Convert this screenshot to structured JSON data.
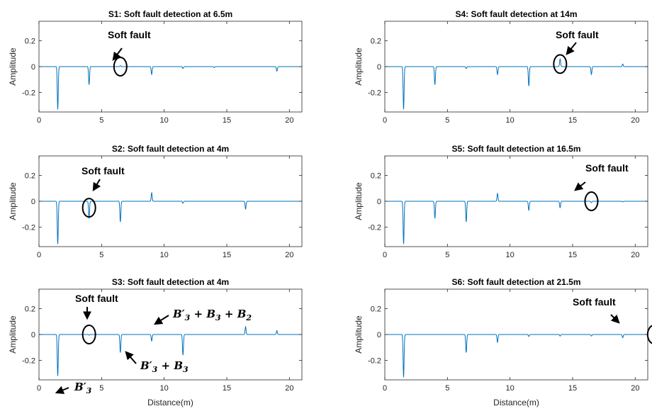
{
  "colors": {
    "line": "#0072BD",
    "axis": "#262626",
    "annotation": "#000000"
  },
  "chart_data": [
    {
      "type": "line",
      "title": "S1: Soft fault detection at 6.5m",
      "ylabel": "Amplitude",
      "xlabel": "",
      "xlim": [
        0,
        21
      ],
      "ylim": [
        -0.35,
        0.35
      ],
      "xticks": [
        "0",
        "5",
        "10",
        "15",
        "20"
      ],
      "yticks": [
        "0.2",
        "0",
        "-0.2"
      ],
      "series": [
        {
          "dips": [
            [
              1.5,
              -0.33
            ],
            [
              4.0,
              -0.14
            ],
            [
              6.5,
              0.008
            ],
            [
              9.0,
              -0.06
            ],
            [
              11.5,
              -0.015
            ],
            [
              14.0,
              -0.008
            ],
            [
              19.0,
              -0.035
            ]
          ]
        }
      ],
      "annotations": [
        {
          "text": "Soft fault",
          "circle_at": [
            6.5,
            0.0
          ]
        }
      ]
    },
    {
      "type": "line",
      "title": "S2: Soft fault detection at 4m",
      "ylabel": "Amplitude",
      "xlabel": "",
      "xlim": [
        0,
        21
      ],
      "ylim": [
        -0.35,
        0.35
      ],
      "xticks": [
        "0",
        "5",
        "10",
        "15",
        "20"
      ],
      "yticks": [
        "0.2",
        "0",
        "-0.2"
      ],
      "series": [
        {
          "dips": [
            [
              1.5,
              -0.33
            ],
            [
              4.0,
              -0.13
            ],
            [
              6.5,
              -0.16
            ],
            [
              9.0,
              0.065
            ],
            [
              11.5,
              -0.015
            ],
            [
              16.5,
              -0.06
            ]
          ]
        }
      ],
      "annotations": [
        {
          "text": "Soft fault",
          "circle_at": [
            4.0,
            -0.05
          ]
        }
      ]
    },
    {
      "type": "line",
      "title": "S3: Soft fault detection at 4m",
      "ylabel": "Amplitude",
      "xlabel": "Distance(m)",
      "xlim": [
        0,
        21
      ],
      "ylim": [
        -0.35,
        0.35
      ],
      "xticks": [
        "0",
        "5",
        "10",
        "15",
        "20"
      ],
      "yticks": [
        "0.2",
        "0",
        "-0.2"
      ],
      "series": [
        {
          "dips": [
            [
              1.5,
              -0.32
            ],
            [
              4.0,
              -0.005
            ],
            [
              6.5,
              -0.14
            ],
            [
              9.0,
              -0.05
            ],
            [
              11.5,
              -0.16
            ],
            [
              16.5,
              0.06
            ],
            [
              19.0,
              0.03
            ]
          ]
        }
      ],
      "annotations": [
        {
          "text": "Soft fault",
          "circle_at": [
            4.0,
            0.0
          ]
        },
        {
          "text": "B′3",
          "at": [
            1.5,
            -0.32
          ]
        },
        {
          "text": "B′3+ B3",
          "at": [
            6.5,
            -0.14
          ]
        },
        {
          "text": "B′3+ B3+ B2",
          "at": [
            9.0,
            -0.05
          ]
        }
      ]
    },
    {
      "type": "line",
      "title": "S4: Soft fault detection at 14m",
      "ylabel": "Amplitude",
      "xlabel": "",
      "xlim": [
        0,
        21
      ],
      "ylim": [
        -0.35,
        0.35
      ],
      "xticks": [
        "0",
        "5",
        "10",
        "15",
        "20"
      ],
      "yticks": [
        "0.2",
        "0",
        "-0.2"
      ],
      "series": [
        {
          "dips": [
            [
              1.5,
              -0.33
            ],
            [
              4.0,
              -0.14
            ],
            [
              6.5,
              -0.015
            ],
            [
              9.0,
              -0.06
            ],
            [
              11.5,
              -0.15
            ],
            [
              14.0,
              0.06
            ],
            [
              16.5,
              -0.06
            ],
            [
              19.0,
              0.02
            ]
          ]
        }
      ],
      "annotations": [
        {
          "text": "Soft fault",
          "circle_at": [
            14.0,
            0.02
          ]
        }
      ]
    },
    {
      "type": "line",
      "title": "S5: Soft fault detection at 16.5m",
      "ylabel": "Amplitude",
      "xlabel": "",
      "xlim": [
        0,
        21
      ],
      "ylim": [
        -0.35,
        0.35
      ],
      "xticks": [
        "0",
        "5",
        "10",
        "15",
        "20"
      ],
      "yticks": [
        "0.2",
        "0",
        "-0.2"
      ],
      "series": [
        {
          "dips": [
            [
              1.5,
              -0.33
            ],
            [
              4.0,
              -0.13
            ],
            [
              6.5,
              -0.16
            ],
            [
              9.0,
              0.06
            ],
            [
              11.5,
              -0.07
            ],
            [
              14.0,
              -0.05
            ],
            [
              16.5,
              -0.01
            ],
            [
              19.0,
              -0.005
            ]
          ]
        }
      ],
      "annotations": [
        {
          "text": "Soft fault",
          "circle_at": [
            16.5,
            0.0
          ]
        }
      ]
    },
    {
      "type": "line",
      "title": "S6: Soft fault detection at 21.5m",
      "ylabel": "Amplitude",
      "xlabel": "Distance(m)",
      "xlim": [
        0,
        21
      ],
      "ylim": [
        -0.35,
        0.35
      ],
      "xticks": [
        "0",
        "5",
        "10",
        "15",
        "20"
      ],
      "yticks": [
        "0.2",
        "0",
        "-0.2"
      ],
      "series": [
        {
          "dips": [
            [
              1.5,
              -0.33
            ],
            [
              6.5,
              -0.14
            ],
            [
              9.0,
              -0.06
            ],
            [
              11.5,
              -0.015
            ],
            [
              14.0,
              -0.012
            ],
            [
              16.5,
              -0.012
            ],
            [
              19.0,
              -0.025
            ]
          ]
        }
      ],
      "annotations": [
        {
          "text": "Soft fault",
          "circle_at": [
            21.5,
            0.0
          ]
        }
      ]
    }
  ]
}
